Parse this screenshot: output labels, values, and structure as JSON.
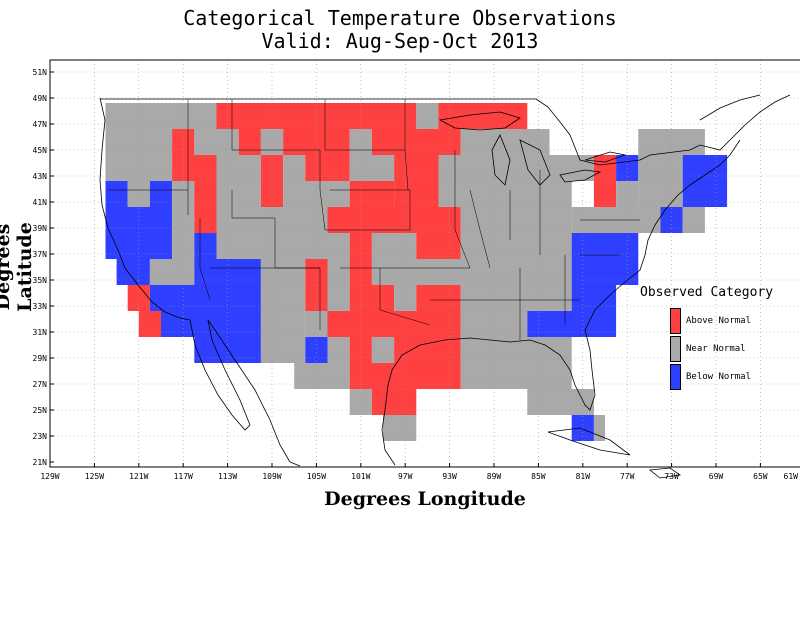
{
  "title_line1": "Categorical Temperature Observations",
  "title_line2": "Valid: Aug-Sep-Oct 2013",
  "xlabel": "Degrees Longitude",
  "ylabel": "Degrees Latitude",
  "x_ticks": [
    "129W",
    "125W",
    "121W",
    "117W",
    "113W",
    "109W",
    "105W",
    "101W",
    "97W",
    "93W",
    "89W",
    "85W",
    "81W",
    "77W",
    "73W",
    "69W",
    "65W",
    "61W"
  ],
  "y_ticks": [
    "51N",
    "49N",
    "47N",
    "45N",
    "43N",
    "41N",
    "39N",
    "37N",
    "35N",
    "33N",
    "31N",
    "29N",
    "27N",
    "25N",
    "23N",
    "21N"
  ],
  "legend": {
    "title": "Observed Category",
    "items": [
      {
        "label": "Above Normal",
        "color": "#ff4040"
      },
      {
        "label": "Near Normal",
        "color": "#a9a9a9"
      },
      {
        "label": "Below Normal",
        "color": "#2f3fff"
      }
    ]
  },
  "chart_data": {
    "type": "heatmap",
    "x_range": [
      -129,
      -61
    ],
    "y_range": [
      21,
      52
    ],
    "cell_size_deg": 2,
    "codes": {
      "A": "Above Normal",
      "N": "Near Normal",
      "B": "Below Normal"
    },
    "rows": [
      {
        "lat_top": 49,
        "cells": [
          [
            -124,
            -114,
            "N"
          ],
          [
            -114,
            -96,
            "A"
          ],
          [
            -96,
            -94,
            "N"
          ],
          [
            -94,
            -86,
            "A"
          ]
        ]
      },
      {
        "lat_top": 47,
        "cells": [
          [
            -124,
            -118,
            "N"
          ],
          [
            -118,
            -116,
            "A"
          ],
          [
            -116,
            -112,
            "N"
          ],
          [
            -112,
            -110,
            "A"
          ],
          [
            -110,
            -108,
            "N"
          ],
          [
            -108,
            -102,
            "A"
          ],
          [
            -102,
            -100,
            "N"
          ],
          [
            -100,
            -92,
            "A"
          ],
          [
            -92,
            -84,
            "N"
          ],
          [
            -76,
            -70,
            "N"
          ]
        ]
      },
      {
        "lat_top": 45,
        "cells": [
          [
            -124,
            -118,
            "N"
          ],
          [
            -118,
            -114,
            "A"
          ],
          [
            -114,
            -110,
            "N"
          ],
          [
            -110,
            -108,
            "A"
          ],
          [
            -108,
            -106,
            "N"
          ],
          [
            -106,
            -102,
            "A"
          ],
          [
            -102,
            -98,
            "N"
          ],
          [
            -98,
            -94,
            "A"
          ],
          [
            -94,
            -80,
            "N"
          ],
          [
            -80,
            -78,
            "A"
          ],
          [
            -78,
            -76,
            "B"
          ],
          [
            -76,
            -72,
            "N"
          ],
          [
            -72,
            -68,
            "B"
          ]
        ]
      },
      {
        "lat_top": 43,
        "cells": [
          [
            -124,
            -122,
            "B"
          ],
          [
            -122,
            -120,
            "N"
          ],
          [
            -120,
            -118,
            "B"
          ],
          [
            -118,
            -116,
            "N"
          ],
          [
            -116,
            -114,
            "A"
          ],
          [
            -114,
            -110,
            "N"
          ],
          [
            -110,
            -108,
            "A"
          ],
          [
            -108,
            -102,
            "N"
          ],
          [
            -102,
            -98,
            "A"
          ],
          [
            -98,
            -94,
            "A"
          ],
          [
            -94,
            -82,
            "N"
          ],
          [
            -80,
            -78,
            "A"
          ],
          [
            -78,
            -76,
            "N"
          ],
          [
            -76,
            -72,
            "N"
          ],
          [
            -72,
            -68,
            "B"
          ]
        ]
      },
      {
        "lat_top": 41,
        "cells": [
          [
            -124,
            -118,
            "B"
          ],
          [
            -118,
            -116,
            "N"
          ],
          [
            -116,
            -114,
            "A"
          ],
          [
            -114,
            -104,
            "N"
          ],
          [
            -104,
            -92,
            "A"
          ],
          [
            -92,
            -82,
            "N"
          ],
          [
            -82,
            -74,
            "N"
          ],
          [
            -74,
            -72,
            "B"
          ],
          [
            -72,
            -70,
            "N"
          ]
        ]
      },
      {
        "lat_top": 39,
        "cells": [
          [
            -124,
            -118,
            "B"
          ],
          [
            -118,
            -116,
            "N"
          ],
          [
            -116,
            -114,
            "B"
          ],
          [
            -114,
            -102,
            "N"
          ],
          [
            -102,
            -100,
            "A"
          ],
          [
            -100,
            -96,
            "N"
          ],
          [
            -96,
            -94,
            "A"
          ],
          [
            -94,
            -92,
            "A"
          ],
          [
            -92,
            -82,
            "N"
          ],
          [
            -82,
            -76,
            "B"
          ]
        ]
      },
      {
        "lat_top": 37,
        "cells": [
          [
            -123,
            -120,
            "B"
          ],
          [
            -120,
            -116,
            "N"
          ],
          [
            -116,
            -110,
            "B"
          ],
          [
            -110,
            -106,
            "N"
          ],
          [
            -106,
            -104,
            "A"
          ],
          [
            -104,
            -102,
            "N"
          ],
          [
            -102,
            -100,
            "A"
          ],
          [
            -100,
            -82,
            "N"
          ],
          [
            -82,
            -76,
            "B"
          ]
        ]
      },
      {
        "lat_top": 35,
        "cells": [
          [
            -122,
            -120,
            "A"
          ],
          [
            -120,
            -110,
            "B"
          ],
          [
            -110,
            -106,
            "N"
          ],
          [
            -106,
            -104,
            "A"
          ],
          [
            -104,
            -102,
            "N"
          ],
          [
            -102,
            -98,
            "A"
          ],
          [
            -98,
            -96,
            "N"
          ],
          [
            -96,
            -92,
            "A"
          ],
          [
            -92,
            -82,
            "N"
          ],
          [
            -82,
            -78,
            "B"
          ]
        ]
      },
      {
        "lat_top": 33,
        "cells": [
          [
            -121,
            -119,
            "A"
          ],
          [
            -119,
            -110,
            "B"
          ],
          [
            -110,
            -106,
            "N"
          ],
          [
            -106,
            -104,
            "N"
          ],
          [
            -104,
            -92,
            "A"
          ],
          [
            -92,
            -86,
            "N"
          ],
          [
            -86,
            -78,
            "B"
          ]
        ]
      },
      {
        "lat_top": 31,
        "cells": [
          [
            -116,
            -110,
            "B"
          ],
          [
            -110,
            -106,
            "N"
          ],
          [
            -106,
            -104,
            "B"
          ],
          [
            -104,
            -102,
            "N"
          ],
          [
            -102,
            -100,
            "A"
          ],
          [
            -100,
            -98,
            "N"
          ],
          [
            -98,
            -92,
            "A"
          ],
          [
            -92,
            -82,
            "N"
          ]
        ]
      },
      {
        "lat_top": 29,
        "cells": [
          [
            -107,
            -102,
            "N"
          ],
          [
            -102,
            -92,
            "A"
          ],
          [
            -92,
            -82,
            "N"
          ]
        ]
      },
      {
        "lat_top": 27,
        "cells": [
          [
            -102,
            -100,
            "N"
          ],
          [
            -100,
            -96,
            "A"
          ],
          [
            -86,
            -84,
            "N"
          ],
          [
            -84,
            -80,
            "N"
          ]
        ]
      },
      {
        "lat_top": 25,
        "cells": [
          [
            -99,
            -96,
            "N"
          ],
          [
            -82,
            -80,
            "B"
          ],
          [
            -80,
            -79,
            "N"
          ]
        ]
      }
    ]
  }
}
